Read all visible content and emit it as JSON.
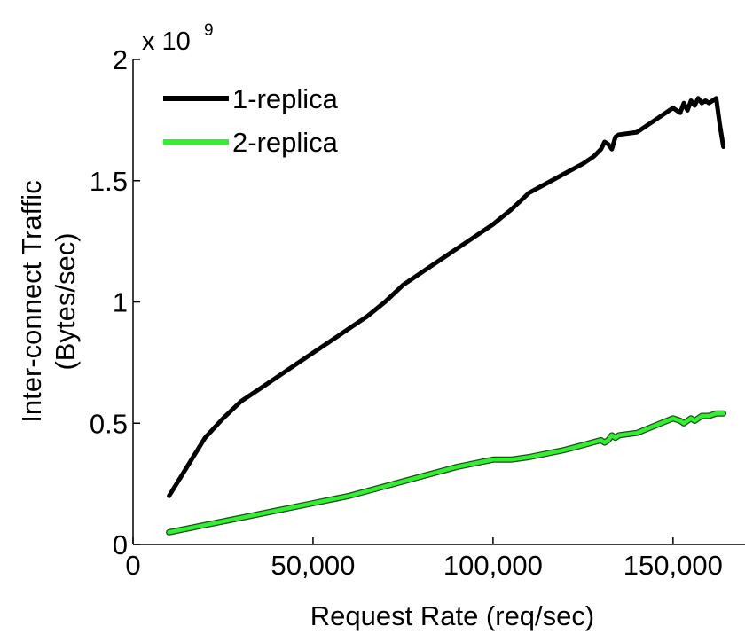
{
  "chart_data": {
    "type": "line",
    "title": "",
    "xlabel": "Request Rate (req/sec)",
    "ylabel_lines": [
      "Inter-connect Traffic",
      "(Bytes/sec)"
    ],
    "y_multiplier": {
      "base": "x 10",
      "exponent": "9"
    },
    "xlim": [
      0,
      170000
    ],
    "ylim": [
      0,
      2
    ],
    "x_ticks": [
      {
        "value": 0,
        "label": "0"
      },
      {
        "value": 50000,
        "label": "50,000"
      },
      {
        "value": 100000,
        "label": "100,000"
      },
      {
        "value": 150000,
        "label": "150,000"
      }
    ],
    "y_ticks": [
      {
        "value": 0,
        "label": "0"
      },
      {
        "value": 0.5,
        "label": "0.5"
      },
      {
        "value": 1,
        "label": "1"
      },
      {
        "value": 1.5,
        "label": "1.5"
      },
      {
        "value": 2,
        "label": "2"
      }
    ],
    "grid": false,
    "legend_position": "top-left",
    "series": [
      {
        "name": "1-replica",
        "color": "#000000",
        "x": [
          10000,
          15000,
          20000,
          25000,
          30000,
          35000,
          40000,
          45000,
          50000,
          55000,
          60000,
          65000,
          70000,
          75000,
          80000,
          85000,
          90000,
          95000,
          100000,
          105000,
          110000,
          115000,
          120000,
          125000,
          128000,
          130000,
          131000,
          132000,
          133000,
          134000,
          135000,
          140000,
          145000,
          150000,
          152000,
          153000,
          154000,
          155000,
          156000,
          157000,
          158000,
          159000,
          160000,
          161000,
          162000,
          163000,
          164000
        ],
        "y": [
          0.2,
          0.32,
          0.44,
          0.52,
          0.59,
          0.64,
          0.69,
          0.74,
          0.79,
          0.84,
          0.89,
          0.94,
          1.0,
          1.07,
          1.12,
          1.17,
          1.22,
          1.27,
          1.32,
          1.38,
          1.45,
          1.49,
          1.53,
          1.57,
          1.6,
          1.63,
          1.66,
          1.65,
          1.63,
          1.68,
          1.69,
          1.7,
          1.75,
          1.8,
          1.78,
          1.82,
          1.79,
          1.83,
          1.81,
          1.84,
          1.82,
          1.83,
          1.82,
          1.83,
          1.84,
          1.73,
          1.64
        ]
      },
      {
        "name": "2-replica",
        "color": "#33ee33",
        "x": [
          10000,
          20000,
          30000,
          40000,
          50000,
          60000,
          70000,
          80000,
          90000,
          100000,
          105000,
          110000,
          120000,
          125000,
          130000,
          131000,
          132000,
          133000,
          134000,
          135000,
          140000,
          145000,
          150000,
          152000,
          153000,
          154000,
          155000,
          156000,
          158000,
          160000,
          162000,
          164000
        ],
        "y": [
          0.05,
          0.08,
          0.11,
          0.14,
          0.17,
          0.2,
          0.24,
          0.28,
          0.32,
          0.35,
          0.35,
          0.36,
          0.39,
          0.41,
          0.43,
          0.42,
          0.43,
          0.45,
          0.44,
          0.45,
          0.46,
          0.49,
          0.52,
          0.51,
          0.5,
          0.51,
          0.52,
          0.51,
          0.53,
          0.53,
          0.54,
          0.54
        ]
      }
    ]
  }
}
